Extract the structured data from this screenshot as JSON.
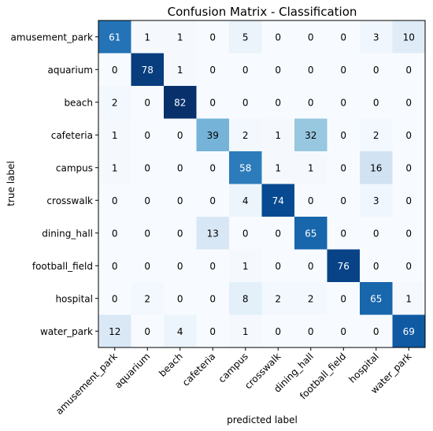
{
  "chart_data": {
    "type": "heatmap",
    "title": "Confusion Matrix - Classification",
    "xlabel": "predicted label",
    "ylabel": "true label",
    "categories": [
      "amusement_park",
      "aquarium",
      "beach",
      "cafeteria",
      "campus",
      "crosswalk",
      "dining_hall",
      "football_field",
      "hospital",
      "water_park"
    ],
    "matrix": [
      [
        61,
        1,
        1,
        0,
        5,
        0,
        0,
        0,
        3,
        10
      ],
      [
        0,
        78,
        1,
        0,
        0,
        0,
        0,
        0,
        0,
        0
      ],
      [
        2,
        0,
        82,
        0,
        0,
        0,
        0,
        0,
        0,
        0
      ],
      [
        1,
        0,
        0,
        39,
        2,
        1,
        32,
        0,
        2,
        0
      ],
      [
        1,
        0,
        0,
        0,
        58,
        1,
        1,
        0,
        16,
        0
      ],
      [
        0,
        0,
        0,
        0,
        4,
        74,
        0,
        0,
        3,
        0
      ],
      [
        0,
        0,
        0,
        13,
        0,
        0,
        65,
        0,
        0,
        0
      ],
      [
        0,
        0,
        0,
        0,
        1,
        0,
        0,
        76,
        0,
        0
      ],
      [
        0,
        2,
        0,
        0,
        8,
        2,
        2,
        0,
        65,
        1
      ],
      [
        12,
        0,
        4,
        0,
        1,
        0,
        0,
        0,
        0,
        69
      ]
    ],
    "colormap": "Blues",
    "value_range": [
      0,
      82
    ],
    "grid": false,
    "legend": "none"
  }
}
